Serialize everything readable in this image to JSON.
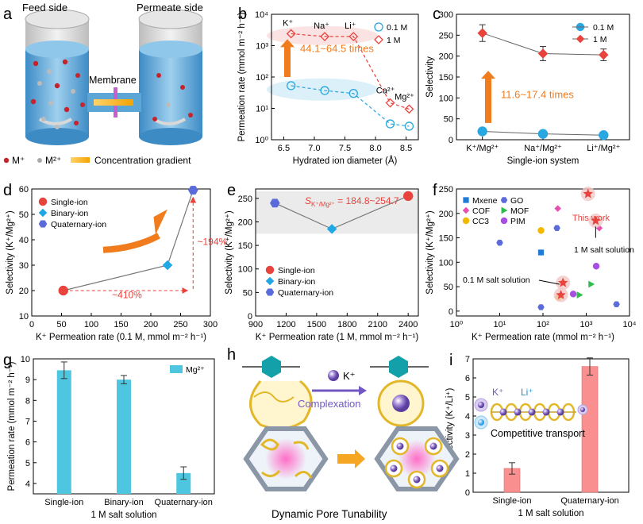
{
  "panel_a": {
    "label": "a",
    "feed_side": "Feed side",
    "permeate_side": "Permeate side",
    "membrane": "Membrane",
    "legend_m1": "M⁺",
    "legend_m2": "M²⁺",
    "legend_gradient": "Concentration gradient"
  },
  "panel_h": {
    "label": "h",
    "ion": "K⁺",
    "complexation": "Complexation",
    "caption": "Dynamic Pore Tunability"
  },
  "chart_data": [
    {
      "id": "b",
      "label": "b",
      "type": "line",
      "xlabel": "Hydrated ion diameter (Å)",
      "ylabel": "Permeation rate (mmol m⁻² h⁻¹)",
      "xlim": [
        6.3,
        8.7
      ],
      "ylim_log": [
        1,
        10000
      ],
      "yscale": "log",
      "xticks": [
        "6.5",
        "7.0",
        "7.5",
        "8.0",
        "8.5"
      ],
      "yticks": [
        "10⁰",
        "10¹",
        "10²",
        "10³",
        "10⁴"
      ],
      "x": [
        6.62,
        7.17,
        7.64,
        8.24,
        8.55
      ],
      "series": [
        {
          "name": "0.1 M",
          "values": [
            53,
            37,
            30,
            3.2,
            2.7
          ],
          "color": "#29a7e0",
          "marker": "circle"
        },
        {
          "name": "1 M",
          "values": [
            2400,
            1950,
            1950,
            15,
            9.5
          ],
          "color": "#e8433c",
          "marker": "diamond"
        }
      ],
      "ion_labels": [
        "K⁺",
        "Na⁺",
        "Li⁺",
        "Ca²⁺",
        "Mg²⁺"
      ],
      "annotation": "44.1~64.5 times"
    },
    {
      "id": "c",
      "label": "c",
      "type": "line",
      "xlabel": "Single-ion system",
      "ylabel": "Selectivity",
      "ylim": [
        0,
        300
      ],
      "yticks": [
        "0",
        "50",
        "100",
        "150",
        "200",
        "250",
        "300"
      ],
      "categories": [
        "K⁺/Mg²⁺",
        "Na⁺/Mg²⁺",
        "Li⁺/Mg²⁺"
      ],
      "series": [
        {
          "name": "0.1 M",
          "values": [
            20,
            14,
            11
          ],
          "color": "#29a7e0"
        },
        {
          "name": "1 M",
          "values": [
            255,
            206,
            203
          ],
          "errors": [
            20,
            17,
            14
          ],
          "color": "#e8433c"
        }
      ],
      "annotation": "11.6~17.4 times"
    },
    {
      "id": "d",
      "label": "d",
      "type": "scatter",
      "xlabel": "K⁺ Permeation rate (0.1 M, mmol m⁻² h⁻¹)",
      "ylabel": "Selectivity (K⁺/Mg²⁺)",
      "xlim": [
        0,
        300
      ],
      "ylim": [
        10,
        60
      ],
      "xticks": [
        "0",
        "50",
        "100",
        "150",
        "200",
        "250",
        "300"
      ],
      "yticks": [
        "10",
        "20",
        "30",
        "40",
        "50",
        "60"
      ],
      "points": [
        {
          "name": "Single-ion",
          "x": 53,
          "y": 20,
          "color": "#e8433c"
        },
        {
          "name": "Binary-ion",
          "x": 228,
          "y": 30,
          "color": "#1fa7e6"
        },
        {
          "name": "Quaternary-ion",
          "x": 271,
          "y": 59.5,
          "color": "#5b6bd9"
        }
      ],
      "ann_x": "~410%",
      "ann_y": "~194%"
    },
    {
      "id": "e",
      "label": "e",
      "type": "scatter",
      "xlabel": "K⁺ Permeation rate (1 M, mmol m⁻² h⁻¹)",
      "ylabel": "Selectivity (K⁺/Mg²⁺)",
      "xlim": [
        900,
        2500
      ],
      "ylim": [
        0,
        270
      ],
      "xticks": [
        "900",
        "1200",
        "1500",
        "1800",
        "2100",
        "2400"
      ],
      "yticks": [
        "0",
        "50",
        "100",
        "150",
        "200",
        "250"
      ],
      "points": [
        {
          "name": "Single-ion",
          "x": 2400,
          "y": 255,
          "color": "#e8433c"
        },
        {
          "name": "Binary-ion",
          "x": 1650,
          "y": 185,
          "color": "#1fa7e6"
        },
        {
          "name": "Quaternary-ion",
          "x": 1090,
          "y": 240,
          "color": "#5b6bd9"
        }
      ],
      "band": [
        175,
        265
      ],
      "annotation_prefix": "S",
      "annotation_sub": "K⁺/Mg²⁺",
      "annotation_value": " = 184.8~254.7"
    },
    {
      "id": "f",
      "label": "f",
      "type": "scatter",
      "xlabel": "K⁺ Permeation rate (mmol m⁻² h⁻¹)",
      "ylabel": "Selectivity (K⁺/Mg²⁺)",
      "xscale": "log",
      "xlim_log": [
        1,
        10000
      ],
      "ylim": [
        -10,
        250
      ],
      "xticks": [
        "10⁰",
        "10¹",
        "10²",
        "10³",
        "10⁴"
      ],
      "yticks": [
        "0",
        "50",
        "100",
        "150",
        "200",
        "250"
      ],
      "legend": [
        {
          "name": "Mxene",
          "color": "#1f7ad9",
          "marker": "square"
        },
        {
          "name": "GO",
          "color": "#5b6bd9",
          "marker": "hexagon"
        },
        {
          "name": "COF",
          "color": "#e64fb0",
          "marker": "diamond"
        },
        {
          "name": "MOF",
          "color": "#2ebd4d",
          "marker": "triangle"
        },
        {
          "name": "CC3",
          "color": "#f5b800",
          "marker": "circle"
        },
        {
          "name": "PIM",
          "color": "#a64fe0",
          "marker": "circle"
        }
      ],
      "points": [
        {
          "set": "Mxene",
          "x": 90,
          "y": 120
        },
        {
          "set": "GO",
          "x": 10,
          "y": 140
        },
        {
          "set": "GO",
          "x": 210,
          "y": 170
        },
        {
          "set": "GO",
          "x": 90,
          "y": 8
        },
        {
          "set": "GO",
          "x": 5000,
          "y": 14
        },
        {
          "set": "COF",
          "x": 220,
          "y": 210
        },
        {
          "set": "COF",
          "x": 2000,
          "y": 170
        },
        {
          "set": "MOF",
          "x": 1300,
          "y": 55
        },
        {
          "set": "MOF",
          "x": 700,
          "y": 33
        },
        {
          "set": "CC3",
          "x": 90,
          "y": 165
        },
        {
          "set": "CC3",
          "x": 230,
          "y": 28
        },
        {
          "set": "PIM",
          "x": 1700,
          "y": 92
        },
        {
          "set": "PIM",
          "x": 500,
          "y": 35
        },
        {
          "set": "This work",
          "x": 1100,
          "y": 240
        },
        {
          "set": "This work",
          "x": 1650,
          "y": 185
        },
        {
          "set": "This work",
          "x": 290,
          "y": 58
        },
        {
          "set": "This work",
          "x": 260,
          "y": 33
        }
      ],
      "this_work": "This work",
      "salt_1m": "1 M salt solution",
      "salt_01m": "0.1 M salt solution"
    },
    {
      "id": "g",
      "label": "g",
      "type": "bar",
      "xlabel": "1 M salt solution",
      "ylabel": "Permeation rate (mmol m⁻² h⁻¹)",
      "ylim": [
        3.5,
        10
      ],
      "yticks": [
        "4",
        "5",
        "6",
        "7",
        "8",
        "9",
        "10"
      ],
      "categories": [
        "Single-ion",
        "Binary-ion",
        "Quaternary-ion"
      ],
      "series": [
        {
          "name": "Mg²⁺",
          "values": [
            9.45,
            9.0,
            4.5
          ],
          "errors": [
            0.4,
            0.2,
            0.3
          ],
          "color": "#4ec6e0"
        }
      ]
    },
    {
      "id": "i",
      "label": "i",
      "type": "bar",
      "xlabel": "1 M salt solution",
      "ylabel": "Selectivity (K⁺/Li⁺)",
      "ylim": [
        0,
        7
      ],
      "yticks": [
        "0",
        "1",
        "2",
        "3",
        "4",
        "5",
        "6",
        "7"
      ],
      "categories": [
        "Single-ion",
        "Quaternary-ion"
      ],
      "series": [
        {
          "name": "K⁺/Li⁺",
          "values": [
            1.25,
            6.6
          ],
          "errors": [
            0.3,
            0.45
          ],
          "color": "#f98f8f"
        }
      ],
      "inset_k": "K⁺",
      "inset_li": "Li⁺",
      "inset_text": "Competitive transport"
    }
  ]
}
